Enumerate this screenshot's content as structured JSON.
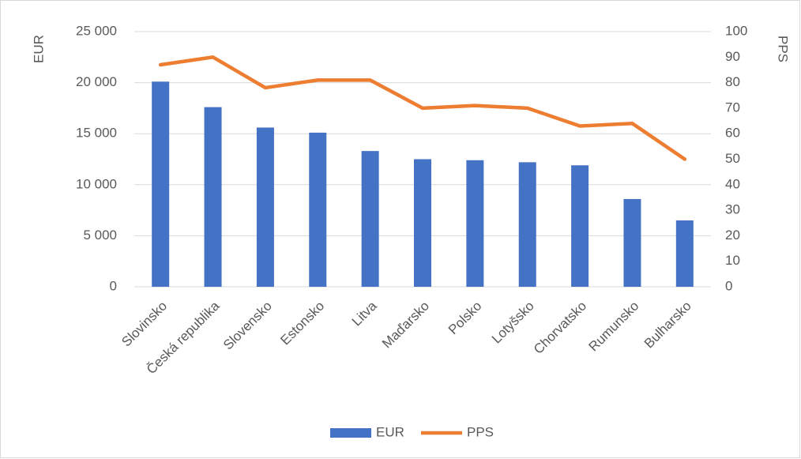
{
  "chart_data": {
    "type": "combo",
    "categories": [
      "Slovinsko",
      "Česká republika",
      "Slovensko",
      "Estonsko",
      "Litva",
      "Maďarsko",
      "Polsko",
      "Lotyšsko",
      "Chorvatsko",
      "Rumunsko",
      "Bulharsko"
    ],
    "series": [
      {
        "name": "EUR",
        "type": "bar",
        "color": "#4472c4",
        "axis": "y",
        "values": [
          20100,
          17600,
          15600,
          15100,
          13300,
          12500,
          12400,
          12200,
          11900,
          8600,
          6500
        ]
      },
      {
        "name": "PPS",
        "type": "line",
        "color": "#ed7d31",
        "axis": "y2",
        "values": [
          87,
          90,
          78,
          81,
          81,
          70,
          71,
          70,
          63,
          64,
          50
        ]
      }
    ],
    "ylabel": "EUR",
    "y2label": "PPS",
    "ylim": [
      0,
      25000
    ],
    "yticks": [
      0,
      {
        "value": 5000,
        "label": "5 000"
      },
      {
        "value": 10000,
        "label": "10 000"
      },
      {
        "value": 15000,
        "label": "15 000"
      },
      {
        "value": 20000,
        "label": "20 000"
      },
      {
        "value": 25000,
        "label": "25 000"
      }
    ],
    "y2lim": [
      0,
      100
    ],
    "y2ticks": [
      0,
      10,
      20,
      30,
      40,
      50,
      60,
      70,
      80,
      90,
      100
    ],
    "grid": true,
    "legend": "bottom"
  }
}
